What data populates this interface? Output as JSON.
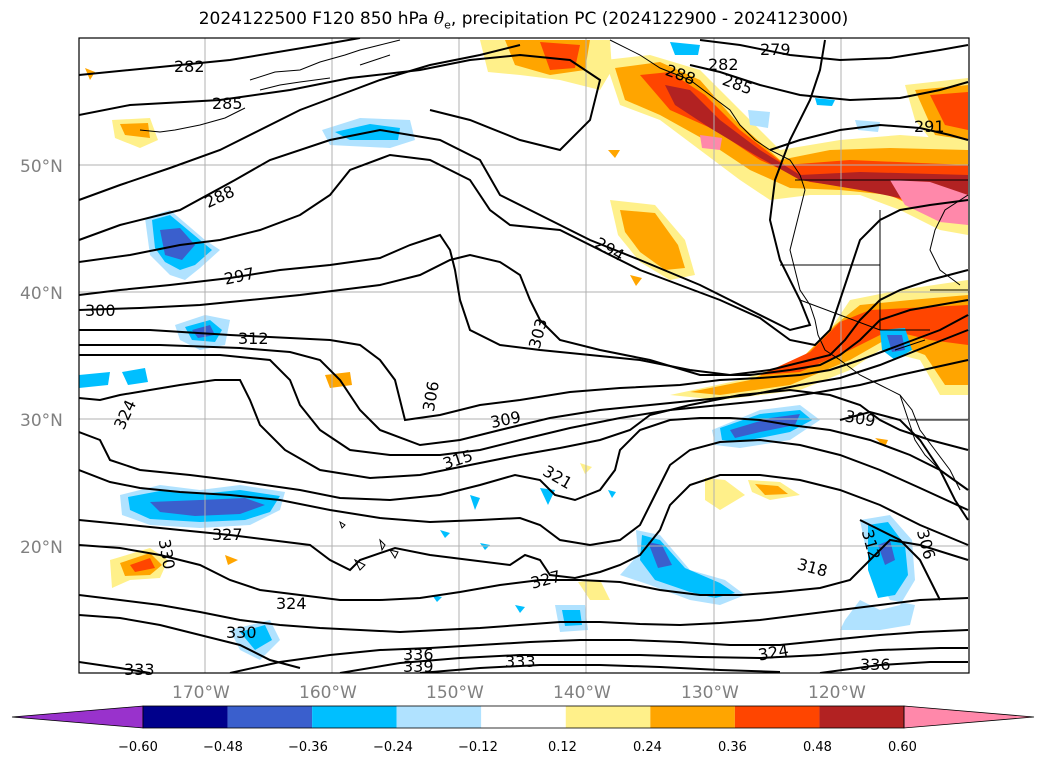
{
  "title": {
    "prefix": "2024122500 F120 850 hPa ",
    "theta_symbol": "θ",
    "theta_sub": "e",
    "suffix": ", precipitation PC (2024122900 - 2024123000)"
  },
  "lat_labels": [
    "50°N",
    "40°N",
    "30°N",
    "20°N"
  ],
  "lon_labels": [
    "170°W",
    "160°W",
    "150°W",
    "140°W",
    "130°W",
    "120°W"
  ],
  "contour_labels": [
    "282",
    "285",
    "288",
    "297",
    "300",
    "312",
    "324",
    "330",
    "327",
    "324",
    "330",
    "333",
    "306",
    "303",
    "294",
    "309",
    "315",
    "321",
    "327",
    "336",
    "339",
    "333",
    "279",
    "282",
    "285",
    "288",
    "291",
    "309",
    "318",
    "324",
    "336",
    "312",
    "306"
  ],
  "colorbar": {
    "ticks": [
      "−0.60",
      "−0.48",
      "−0.36",
      "−0.24",
      "−0.12",
      "0.12",
      "0.24",
      "0.36",
      "0.48",
      "0.60"
    ],
    "colors": [
      "#9932cc",
      "#00008b",
      "#3a5fcd",
      "#00bfff",
      "#b0e2ff",
      "#ffffff",
      "#fff08a",
      "#ffa500",
      "#ff4500",
      "#b22222",
      "#ff88aa"
    ]
  }
}
